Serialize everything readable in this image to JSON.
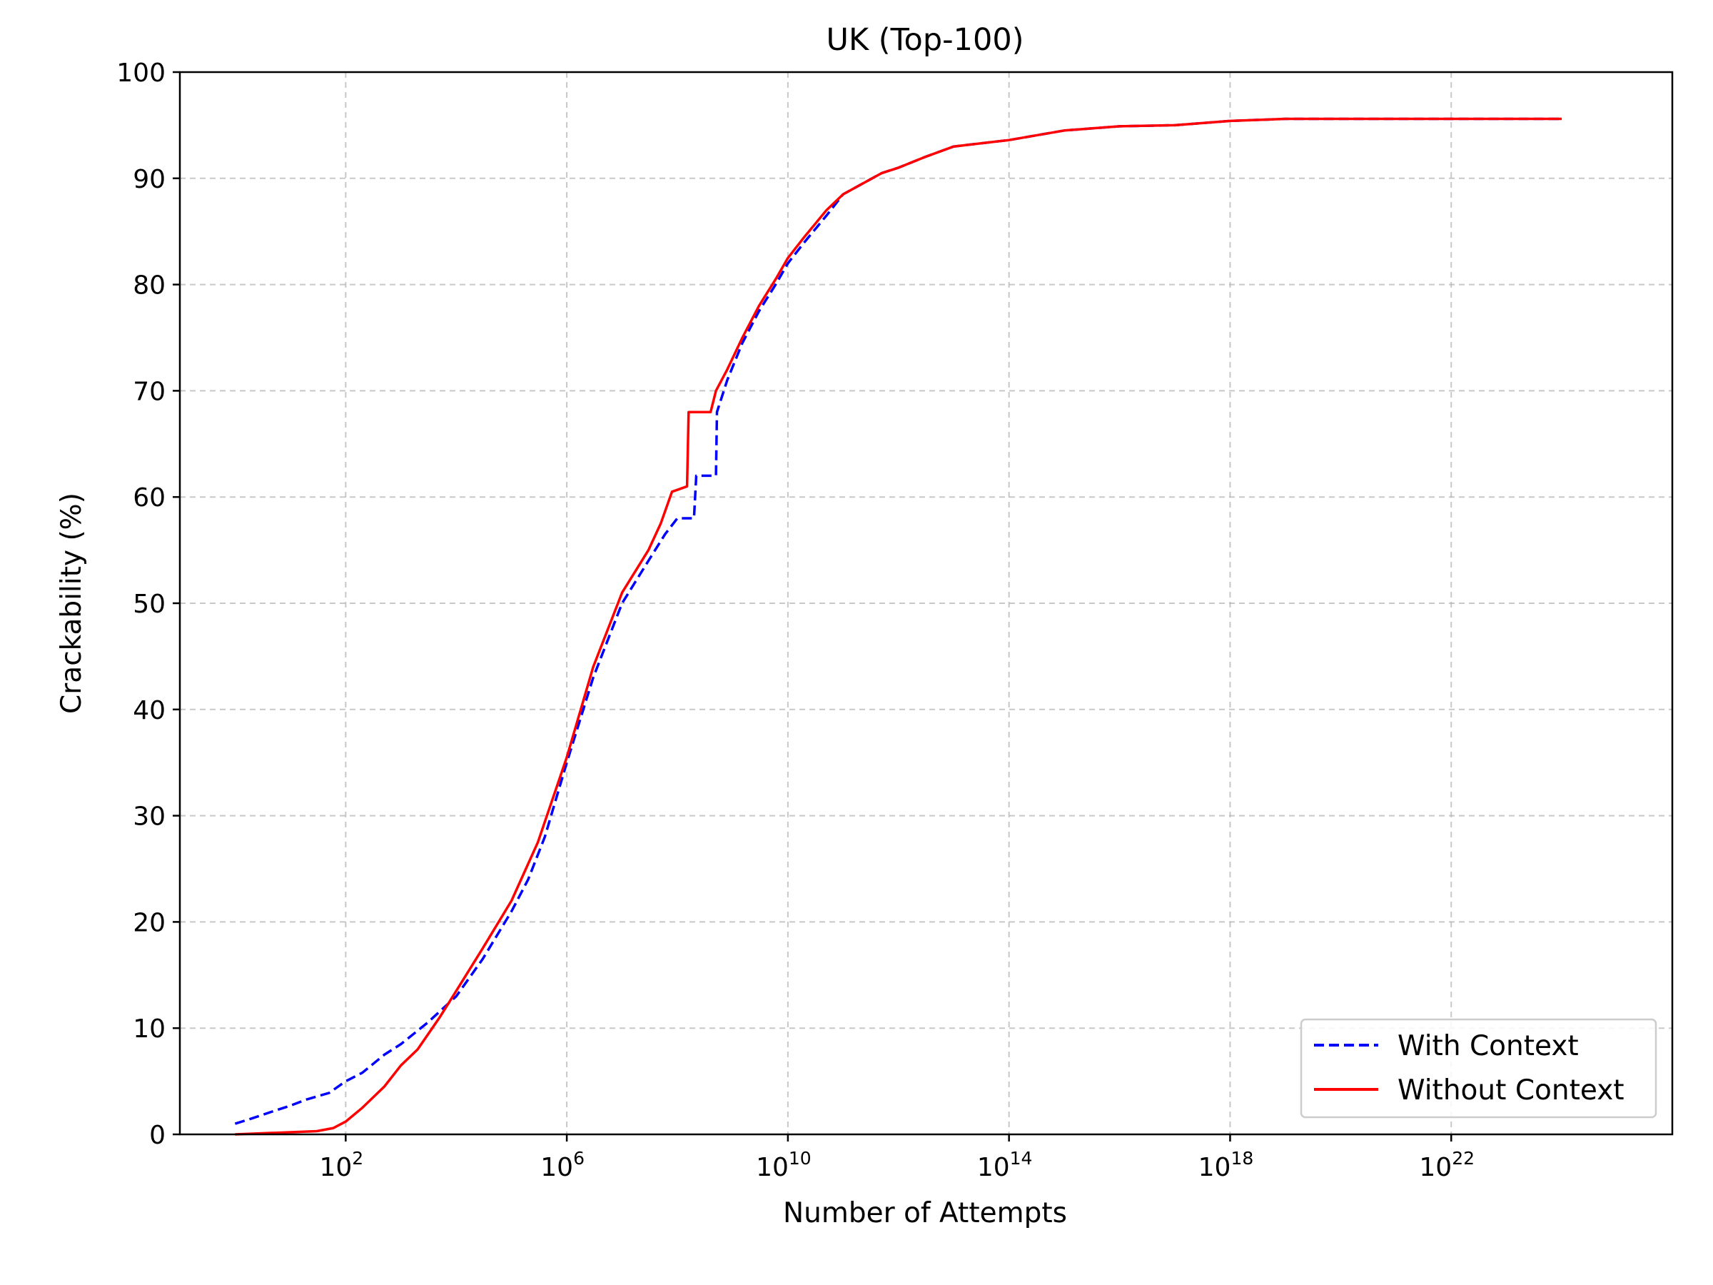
{
  "chart_data": {
    "type": "line",
    "title": "UK (Top-100)",
    "xlabel": "Number of Attempts",
    "ylabel": "Crackability (%)",
    "xscale": "log",
    "xlim": [
      0.1,
      1e+26
    ],
    "ylim": [
      0,
      100
    ],
    "grid": true,
    "legend_position": "lower right",
    "x_ticks": [
      {
        "base": "10",
        "exp": "2",
        "value": 100
      },
      {
        "base": "10",
        "exp": "6",
        "value": 1000000.0
      },
      {
        "base": "10",
        "exp": "10",
        "value": 10000000000.0
      },
      {
        "base": "10",
        "exp": "14",
        "value": 100000000000000.0
      },
      {
        "base": "10",
        "exp": "18",
        "value": 1e+18
      },
      {
        "base": "10",
        "exp": "22",
        "value": 1e+22
      }
    ],
    "y_ticks": [
      "0",
      "10",
      "20",
      "30",
      "40",
      "50",
      "60",
      "70",
      "80",
      "90",
      "100"
    ],
    "series": [
      {
        "name": "With Context",
        "color": "#0000ff",
        "style": "dashed",
        "points": [
          [
            1,
            1.0
          ],
          [
            2,
            1.5
          ],
          [
            5,
            2.2
          ],
          [
            10,
            2.7
          ],
          [
            20,
            3.3
          ],
          [
            50,
            3.9
          ],
          [
            100,
            5.0
          ],
          [
            200,
            5.8
          ],
          [
            500,
            7.5
          ],
          [
            1000,
            8.5
          ],
          [
            3000,
            10.5
          ],
          [
            10000,
            13.0
          ],
          [
            30000,
            16.5
          ],
          [
            100000,
            21.0
          ],
          [
            200000,
            24.0
          ],
          [
            400000,
            28.0
          ],
          [
            1000000.0,
            35.0
          ],
          [
            3000000.0,
            43.0
          ],
          [
            10000000.0,
            50.0
          ],
          [
            30000000.0,
            54.0
          ],
          [
            60000000.0,
            56.5
          ],
          [
            100000000.0,
            58.0
          ],
          [
            200000000.0,
            58.0
          ],
          [
            220000000.0,
            62.0
          ],
          [
            500000000.0,
            62.0
          ],
          [
            520000000.0,
            68.0
          ],
          [
            800000000.0,
            71.0
          ],
          [
            1500000000.0,
            74.5
          ],
          [
            3000000000.0,
            77.5
          ],
          [
            6000000000.0,
            80.0
          ],
          [
            10000000000.0,
            82.0
          ],
          [
            20000000000.0,
            84.0
          ],
          [
            50000000000.0,
            86.5
          ],
          [
            100000000000.0,
            88.5
          ],
          [
            500000000000.0,
            90.5
          ],
          [
            1000000000000.0,
            91.0
          ],
          [
            3000000000000.0,
            92.0
          ],
          [
            10000000000000.0,
            93.0
          ],
          [
            100000000000000.0,
            93.6
          ],
          [
            1000000000000000.0,
            94.5
          ],
          [
            1e+16,
            94.9
          ],
          [
            1e+17,
            95.0
          ],
          [
            1e+18,
            95.4
          ],
          [
            1e+19,
            95.6
          ],
          [
            1e+22,
            95.6
          ],
          [
            1e+24,
            95.6
          ]
        ]
      },
      {
        "name": "Without Context",
        "color": "#ff0000",
        "style": "solid",
        "points": [
          [
            1,
            0.0
          ],
          [
            3,
            0.1
          ],
          [
            10,
            0.2
          ],
          [
            30,
            0.3
          ],
          [
            60,
            0.6
          ],
          [
            100,
            1.2
          ],
          [
            200,
            2.5
          ],
          [
            500,
            4.5
          ],
          [
            1000,
            6.5
          ],
          [
            2000,
            8.0
          ],
          [
            5000,
            11.0
          ],
          [
            10000,
            13.5
          ],
          [
            30000,
            17.5
          ],
          [
            100000,
            22.0
          ],
          [
            300000,
            27.5
          ],
          [
            1000000.0,
            35.5
          ],
          [
            3000000.0,
            44.0
          ],
          [
            10000000.0,
            51.0
          ],
          [
            30000000.0,
            55.0
          ],
          [
            50000000.0,
            57.5
          ],
          [
            80000000.0,
            60.5
          ],
          [
            150000000.0,
            61.0
          ],
          [
            160000000.0,
            68.0
          ],
          [
            400000000.0,
            68.0
          ],
          [
            500000000.0,
            70.0
          ],
          [
            800000000.0,
            72.0
          ],
          [
            1500000000.0,
            75.0
          ],
          [
            3000000000.0,
            78.0
          ],
          [
            6000000000.0,
            80.5
          ],
          [
            10000000000.0,
            82.5
          ],
          [
            20000000000.0,
            84.5
          ],
          [
            50000000000.0,
            87.0
          ],
          [
            100000000000.0,
            88.5
          ],
          [
            500000000000.0,
            90.5
          ],
          [
            1000000000000.0,
            91.0
          ],
          [
            3000000000000.0,
            92.0
          ],
          [
            10000000000000.0,
            93.0
          ],
          [
            100000000000000.0,
            93.6
          ],
          [
            1000000000000000.0,
            94.5
          ],
          [
            1e+16,
            94.9
          ],
          [
            1e+17,
            95.0
          ],
          [
            1e+18,
            95.4
          ],
          [
            1e+19,
            95.6
          ],
          [
            1e+22,
            95.6
          ],
          [
            1e+24,
            95.6
          ]
        ]
      }
    ]
  }
}
